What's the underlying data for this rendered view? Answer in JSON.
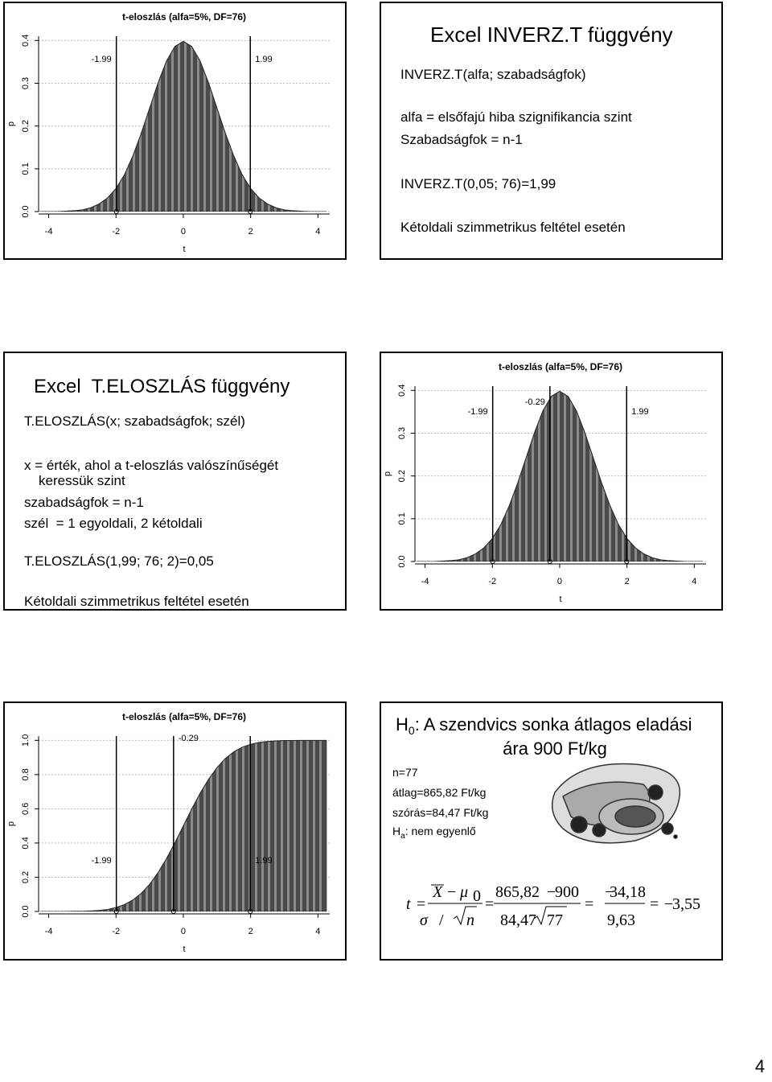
{
  "chart_data": [
    {
      "type": "area",
      "title": "t-eloszlás (alfa=5%, DF=76)",
      "x_label": "t",
      "y_label": "p",
      "x": [
        -4.25,
        -4,
        -3.75,
        -3.5,
        -3.25,
        -3,
        -2.75,
        -2.5,
        -2.25,
        -2,
        -1.75,
        -1.5,
        -1.25,
        -1,
        -0.75,
        -0.5,
        -0.25,
        0,
        0.25,
        0.5,
        0.75,
        1,
        1.25,
        1.5,
        1.75,
        2,
        2.25,
        2.5,
        2.75,
        3,
        3.25,
        3.5,
        3.75,
        4,
        4.25
      ],
      "values": [
        0,
        0,
        0,
        0.001,
        0.002,
        0.004,
        0.009,
        0.018,
        0.032,
        0.054,
        0.086,
        0.13,
        0.183,
        0.242,
        0.301,
        0.352,
        0.386,
        0.398,
        0.386,
        0.352,
        0.301,
        0.242,
        0.183,
        0.13,
        0.086,
        0.054,
        0.032,
        0.018,
        0.009,
        0.004,
        0.002,
        0.001,
        0,
        0,
        0
      ],
      "xlim": [
        -4.3,
        4.35
      ],
      "xticks": [
        -4,
        -2,
        0,
        2,
        4
      ],
      "ylim": [
        0,
        0.41
      ],
      "yticks": [
        {
          "value": 0,
          "label": "0.0"
        },
        0.1,
        0.2,
        0.3,
        0.4
      ],
      "grid": true,
      "vlines": [
        -1.99,
        1.99
      ]
    },
    {
      "type": "area",
      "title": "t-eloszlás (alfa=5%, DF=76)",
      "x_label": "t",
      "y_label": "p",
      "x": [
        -4.25,
        -4,
        -3.75,
        -3.5,
        -3.25,
        -3,
        -2.75,
        -2.5,
        -2.25,
        -2,
        -1.75,
        -1.5,
        -1.25,
        -1,
        -0.75,
        -0.5,
        -0.25,
        0,
        0.25,
        0.5,
        0.75,
        1,
        1.25,
        1.5,
        1.75,
        2,
        2.25,
        2.5,
        2.75,
        3,
        3.25,
        3.5,
        3.75,
        4,
        4.25
      ],
      "values": [
        0,
        0,
        0,
        0.001,
        0.002,
        0.004,
        0.009,
        0.018,
        0.032,
        0.054,
        0.086,
        0.13,
        0.183,
        0.242,
        0.301,
        0.352,
        0.386,
        0.398,
        0.386,
        0.352,
        0.301,
        0.242,
        0.183,
        0.13,
        0.086,
        0.054,
        0.032,
        0.018,
        0.009,
        0.004,
        0.002,
        0.001,
        0,
        0,
        0
      ],
      "xlim": [
        -4.3,
        4.35
      ],
      "xticks": [
        -4,
        -2,
        0,
        2,
        4
      ],
      "ylim": [
        0,
        0.41
      ],
      "yticks": [
        {
          "value": 0,
          "label": "0.0"
        },
        0.1,
        0.2,
        0.3,
        0.4
      ],
      "grid": true,
      "vlines": [
        -1.99,
        -0.29,
        1.99
      ]
    },
    {
      "type": "area",
      "title": "t-eloszlás (alfa=5%, DF=76)",
      "x_label": "t",
      "y_label": "p",
      "x": [
        -4.25,
        -4,
        -3.75,
        -3.5,
        -3.25,
        -3,
        -2.75,
        -2.5,
        -2.25,
        -2,
        -1.75,
        -1.5,
        -1.25,
        -1,
        -0.75,
        -0.5,
        -0.25,
        0,
        0.25,
        0.5,
        0.75,
        1,
        1.25,
        1.5,
        1.75,
        2,
        2.25,
        2.5,
        2.75,
        3,
        3.25,
        3.5,
        3.75,
        4,
        4.25
      ],
      "values": [
        0,
        0,
        0,
        0,
        0.001,
        0.001,
        0.003,
        0.006,
        0.012,
        0.023,
        0.04,
        0.067,
        0.106,
        0.159,
        0.227,
        0.309,
        0.401,
        0.5,
        0.599,
        0.691,
        0.773,
        0.841,
        0.894,
        0.933,
        0.96,
        0.977,
        0.988,
        0.994,
        0.997,
        0.999,
        0.999,
        1,
        1,
        1,
        1
      ],
      "xlim": [
        -4.3,
        4.35
      ],
      "xticks": [
        -4,
        -2,
        0,
        2,
        4
      ],
      "ylim": [
        0,
        1.025
      ],
      "yticks": [
        {
          "value": 0,
          "label": "0.0"
        },
        0.2,
        0.4,
        0.6,
        0.8,
        {
          "value": 1,
          "label": "1.0"
        }
      ],
      "grid": true,
      "vlines": [
        -1.99,
        -0.29,
        1.99
      ]
    }
  ],
  "slides": [
    {
      "title": "Excel INVERZ.T függvény",
      "lines": [
        "INVERZ.T(alfa; szabadságfok)",
        "alfa = elsőfajú hiba szignifikancia szint",
        "Szabadságfok = n-1",
        "INVERZ.T(0,05; 76)=1,99",
        "Kétoldali szimmetrikus feltétel esetén"
      ]
    },
    {
      "title": "Excel  T.ELOSZLÁS függvény",
      "lines": [
        "T.ELOSZLÁS(x; szabadságfok; szél)",
        "x = érték, ahol a t-eloszlás valószínűségét",
        "keressük szint",
        "szabadságfok = n-1",
        "szél  = 1 egyoldali, 2 kétoldali",
        "T.ELOSZLÁS(1,99; 76; 2)=0,05",
        "Kétoldali szimmetrikus feltétel esetén"
      ]
    },
    {
      "h0": {
        "letter": "H",
        "sub": "0",
        "text1": ": A szendvics sonka átlagos eladási",
        "text2": "ára 900 Ft/kg"
      },
      "lines": [
        "n=77",
        "átlag=865,82 Ft/kg",
        "szórás=84,47 Ft/kg"
      ],
      "ha": {
        "letter": "H",
        "sub": "a",
        "text": ": nem egyenlő"
      },
      "equation": [
        "t",
        "=",
        "X",
        "−",
        "μ",
        "0",
        "σ",
        "/",
        "n",
        "=",
        "865,82",
        "−",
        "900",
        "84,47",
        "77",
        "=",
        "−",
        "34,18",
        "9,63",
        "=",
        "−",
        "3,55"
      ]
    }
  ],
  "page_number": "4"
}
